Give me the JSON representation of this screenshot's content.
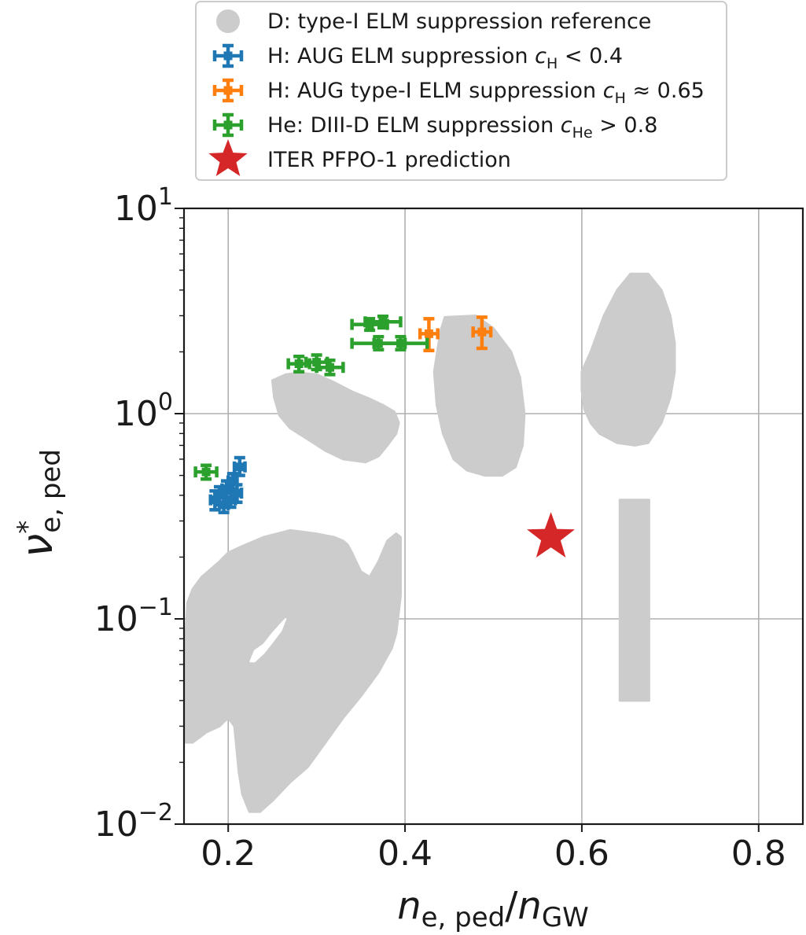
{
  "chart_data": {
    "type": "scatter",
    "title": "",
    "xlabel": {
      "base": "n",
      "sub1": "e, ped",
      "sep": "/",
      "base2": "n",
      "sub2": "GW"
    },
    "ylabel": {
      "base": "ν",
      "sup": "*",
      "sub": "e, ped"
    },
    "xlim": [
      0.15,
      0.85
    ],
    "ylim": [
      0.01,
      10
    ],
    "yscale": "log",
    "grid": true,
    "legend_position": "top-center",
    "xticks": [
      {
        "value": 0.2,
        "label": "0.2"
      },
      {
        "value": 0.4,
        "label": "0.4"
      },
      {
        "value": 0.6,
        "label": "0.6"
      },
      {
        "value": 0.8,
        "label": "0.8"
      }
    ],
    "yticks": [
      {
        "value": 10,
        "base": "10",
        "exp": "1"
      },
      {
        "value": 1,
        "base": "10",
        "exp": "0"
      },
      {
        "value": 0.1,
        "base": "10",
        "exp": "−1"
      },
      {
        "value": 0.01,
        "base": "10",
        "exp": "−2"
      }
    ],
    "legend": [
      {
        "marker": "region",
        "text": "D: type-I ELM suppression reference",
        "color": "#cccccc"
      },
      {
        "marker": "errorbar",
        "text": "H: AUG ELM suppression ",
        "math_var": "c",
        "math_sub": "H",
        "math_rel": " < 0.4",
        "color": "#1f77b4"
      },
      {
        "marker": "errorbar",
        "text": "H: AUG type-I ELM suppression ",
        "math_var": "c",
        "math_sub": "H",
        "math_rel": " ≈ 0.65",
        "color": "#ff7f0e"
      },
      {
        "marker": "errorbar",
        "text": "He: DIII-D ELM suppression ",
        "math_var": "c",
        "math_sub": "He",
        "math_rel": " > 0.8",
        "color": "#2ca02c"
      },
      {
        "marker": "star",
        "text": "ITER PFPO-1 prediction",
        "color": "#d62728"
      }
    ],
    "regions": [
      {
        "name": "D: type-I ELM suppression reference",
        "color": "#cccccc",
        "shapes": [
          [
            [
              0.152,
              0.025
            ],
            [
              0.152,
              0.085
            ],
            [
              0.154,
              0.12
            ],
            [
              0.16,
              0.14
            ],
            [
              0.17,
              0.16
            ],
            [
              0.19,
              0.19
            ],
            [
              0.2,
              0.21
            ],
            [
              0.21,
              0.22
            ],
            [
              0.22,
              0.23
            ],
            [
              0.24,
              0.25
            ],
            [
              0.27,
              0.27
            ],
            [
              0.3,
              0.26
            ],
            [
              0.32,
              0.25
            ],
            [
              0.33,
              0.24
            ],
            [
              0.335,
              0.23
            ],
            [
              0.34,
              0.21
            ],
            [
              0.35,
              0.17
            ],
            [
              0.36,
              0.16
            ],
            [
              0.37,
              0.19
            ],
            [
              0.38,
              0.24
            ],
            [
              0.39,
              0.26
            ],
            [
              0.395,
              0.25
            ],
            [
              0.395,
              0.13
            ],
            [
              0.39,
              0.085
            ],
            [
              0.385,
              0.072
            ],
            [
              0.37,
              0.055
            ],
            [
              0.35,
              0.042
            ],
            [
              0.33,
              0.033
            ],
            [
              0.31,
              0.025
            ],
            [
              0.29,
              0.019
            ],
            [
              0.27,
              0.016
            ],
            [
              0.25,
              0.013
            ],
            [
              0.236,
              0.0115
            ],
            [
              0.224,
              0.0115
            ],
            [
              0.216,
              0.014
            ],
            [
              0.212,
              0.018
            ],
            [
              0.21,
              0.022
            ],
            [
              0.207,
              0.03
            ],
            [
              0.2,
              0.033
            ],
            [
              0.19,
              0.03
            ],
            [
              0.175,
              0.028
            ],
            [
              0.16,
              0.025
            ]
          ],
          [
            [
              0.25,
              1.45
            ],
            [
              0.265,
              1.55
            ],
            [
              0.28,
              1.58
            ],
            [
              0.3,
              1.55
            ],
            [
              0.32,
              1.42
            ],
            [
              0.34,
              1.28
            ],
            [
              0.36,
              1.18
            ],
            [
              0.375,
              1.1
            ],
            [
              0.388,
              1.02
            ],
            [
              0.393,
              0.9
            ],
            [
              0.39,
              0.8
            ],
            [
              0.38,
              0.7
            ],
            [
              0.37,
              0.62
            ],
            [
              0.355,
              0.58
            ],
            [
              0.33,
              0.6
            ],
            [
              0.31,
              0.66
            ],
            [
              0.29,
              0.75
            ],
            [
              0.27,
              0.85
            ],
            [
              0.258,
              0.98
            ],
            [
              0.252,
              1.2
            ]
          ],
          [
            [
              0.433,
              1.6
            ],
            [
              0.44,
              2.5
            ],
            [
              0.445,
              2.95
            ],
            [
              0.48,
              3.0
            ],
            [
              0.5,
              2.6
            ],
            [
              0.52,
              2.0
            ],
            [
              0.53,
              1.5
            ],
            [
              0.535,
              1.0
            ],
            [
              0.533,
              0.7
            ],
            [
              0.525,
              0.55
            ],
            [
              0.51,
              0.5
            ],
            [
              0.49,
              0.5
            ],
            [
              0.47,
              0.53
            ],
            [
              0.455,
              0.6
            ],
            [
              0.443,
              0.8
            ],
            [
              0.436,
              1.1
            ]
          ],
          [
            [
              0.6,
              1.3
            ],
            [
              0.6,
              1.6
            ],
            [
              0.61,
              2.0
            ],
            [
              0.625,
              3.0
            ],
            [
              0.64,
              4.0
            ],
            [
              0.655,
              4.8
            ],
            [
              0.675,
              4.8
            ],
            [
              0.69,
              4.0
            ],
            [
              0.7,
              3.0
            ],
            [
              0.705,
              2.2
            ],
            [
              0.705,
              1.6
            ],
            [
              0.7,
              1.2
            ],
            [
              0.69,
              0.9
            ],
            [
              0.675,
              0.72
            ],
            [
              0.66,
              0.7
            ],
            [
              0.64,
              0.72
            ],
            [
              0.62,
              0.8
            ],
            [
              0.61,
              0.9
            ],
            [
              0.603,
              1.05
            ]
          ],
          [
            [
              0.643,
              0.04
            ],
            [
              0.643,
              0.38
            ],
            [
              0.676,
              0.38
            ],
            [
              0.676,
              0.04
            ]
          ]
        ]
      }
    ],
    "holes": [
      [
        [
          0.225,
          0.062
        ],
        [
          0.23,
          0.07
        ],
        [
          0.24,
          0.075
        ],
        [
          0.25,
          0.085
        ],
        [
          0.26,
          0.095
        ],
        [
          0.265,
          0.1
        ],
        [
          0.26,
          0.088
        ],
        [
          0.25,
          0.077
        ],
        [
          0.24,
          0.068
        ],
        [
          0.23,
          0.062
        ]
      ]
    ],
    "series": [
      {
        "name": "H: AUG ELM suppression c_H < 0.4",
        "color": "#1f77b4",
        "points": [
          {
            "x": 0.185,
            "y": 0.38,
            "xerr": 0.005,
            "ylo": 0.34,
            "yhi": 0.42
          },
          {
            "x": 0.19,
            "y": 0.4,
            "xerr": 0.005,
            "ylo": 0.36,
            "yhi": 0.44
          },
          {
            "x": 0.195,
            "y": 0.36,
            "xerr": 0.005,
            "ylo": 0.33,
            "yhi": 0.39
          },
          {
            "x": 0.198,
            "y": 0.43,
            "xerr": 0.005,
            "ylo": 0.39,
            "yhi": 0.47
          },
          {
            "x": 0.203,
            "y": 0.38,
            "xerr": 0.005,
            "ylo": 0.35,
            "yhi": 0.41
          },
          {
            "x": 0.205,
            "y": 0.47,
            "xerr": 0.005,
            "ylo": 0.43,
            "yhi": 0.51
          },
          {
            "x": 0.21,
            "y": 0.41,
            "xerr": 0.005,
            "ylo": 0.37,
            "yhi": 0.45
          },
          {
            "x": 0.213,
            "y": 0.55,
            "xerr": 0.006,
            "ylo": 0.5,
            "yhi": 0.61
          }
        ]
      },
      {
        "name": "H: AUG type-I ELM suppression c_H ≈ 0.65",
        "color": "#ff7f0e",
        "points": [
          {
            "x": 0.427,
            "y": 2.45,
            "xerr": 0.01,
            "ylo": 2.03,
            "yhi": 2.9
          },
          {
            "x": 0.487,
            "y": 2.5,
            "xerr": 0.01,
            "ylo": 2.08,
            "yhi": 2.95
          }
        ]
      },
      {
        "name": "He: DIII-D ELM suppression c_He > 0.8",
        "color": "#2ca02c",
        "points": [
          {
            "x": 0.175,
            "y": 0.52,
            "xerr": 0.012,
            "ylo": 0.48,
            "yhi": 0.56
          },
          {
            "x": 0.28,
            "y": 1.75,
            "xerr": 0.012,
            "ylo": 1.6,
            "yhi": 1.9
          },
          {
            "x": 0.3,
            "y": 1.78,
            "xerr": 0.012,
            "ylo": 1.64,
            "yhi": 1.93
          },
          {
            "x": 0.315,
            "y": 1.68,
            "xerr": 0.015,
            "ylo": 1.55,
            "yhi": 1.82
          },
          {
            "x": 0.36,
            "y": 2.72,
            "xerr": 0.02,
            "ylo": 2.55,
            "yhi": 2.9
          },
          {
            "x": 0.375,
            "y": 2.8,
            "xerr": 0.02,
            "ylo": 2.62,
            "yhi": 2.98
          },
          {
            "x": 0.37,
            "y": 2.2,
            "xerr": 0.03,
            "ylo": 2.05,
            "yhi": 2.37
          },
          {
            "x": 0.395,
            "y": 2.2,
            "xerr": 0.03,
            "ylo": 2.05,
            "yhi": 2.37
          }
        ]
      }
    ],
    "prediction": {
      "name": "ITER PFPO-1 prediction",
      "x": 0.565,
      "y": 0.25,
      "color": "#d62728"
    }
  }
}
